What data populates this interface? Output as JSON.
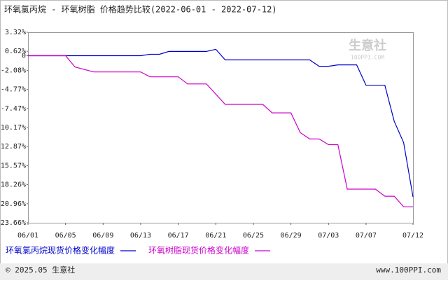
{
  "chart_data": {
    "type": "line",
    "title": "环氧氯丙烷 - 环氧树脂 价格趋势比较(2022-06-01 - 2022-07-12)",
    "watermark": "生意社",
    "watermark_sub": "100PPI.COM",
    "series": [
      {
        "name": "环氧氯丙烷现货价格变化幅度",
        "color": "#0000cc",
        "x": [
          "06/01",
          "06/13",
          "06/14",
          "06/15",
          "06/16",
          "06/20",
          "06/21",
          "06/22",
          "07/01",
          "07/02",
          "07/03",
          "07/04",
          "07/06",
          "07/07",
          "07/09",
          "07/10",
          "07/11",
          "07/12"
        ],
        "values": [
          0,
          0,
          0.2,
          0.2,
          0.6,
          0.6,
          0.9,
          -0.6,
          -0.6,
          -1.5,
          -1.5,
          -1.3,
          -1.3,
          -4.2,
          -4.2,
          -9.3,
          -12.3,
          -20.0
        ]
      },
      {
        "name": "环氧树脂现货价格变化幅度",
        "color": "#cc00cc",
        "x": [
          "06/01",
          "06/05",
          "06/06",
          "06/08",
          "06/13",
          "06/14",
          "06/17",
          "06/18",
          "06/20",
          "06/22",
          "06/26",
          "06/27",
          "06/29",
          "06/30",
          "07/01",
          "07/02",
          "07/03",
          "07/04",
          "07/05",
          "07/08",
          "07/09",
          "07/10",
          "07/11",
          "07/12"
        ],
        "values": [
          0,
          0,
          -1.6,
          -2.3,
          -2.3,
          -3.0,
          -3.0,
          -4.0,
          -4.0,
          -6.9,
          -6.9,
          -8.1,
          -8.1,
          -10.9,
          -11.8,
          -11.8,
          -12.6,
          -12.6,
          -18.9,
          -18.9,
          -19.9,
          -19.9,
          -21.4,
          -21.4
        ]
      }
    ],
    "xlim": [
      "06/01",
      "07/12"
    ],
    "xticks": [
      "06/01",
      "06/05",
      "06/09",
      "06/13",
      "06/17",
      "06/21",
      "06/25",
      "06/29",
      "07/03",
      "07/07",
      "07/12"
    ],
    "ylim": [
      -23.66,
      3.32
    ],
    "yticks": [
      {
        "value": 3.32,
        "label": "3.32%"
      },
      {
        "value": 0.62,
        "label": "0.62%"
      },
      0,
      {
        "value": -2.08,
        "label": "-2.08%"
      },
      {
        "value": -4.77,
        "label": "-4.77%"
      },
      {
        "value": -7.47,
        "label": "-7.47%"
      },
      {
        "value": -10.17,
        "label": "-10.17%"
      },
      {
        "value": -12.87,
        "label": "-12.87%"
      },
      {
        "value": -15.57,
        "label": "-15.57%"
      },
      {
        "value": -18.26,
        "label": "-18.26%"
      },
      {
        "value": -20.96,
        "label": "-20.96%"
      },
      {
        "value": -23.66,
        "label": "-23.66%"
      }
    ],
    "grid": false,
    "footer_left": "© 2025.05 生意社",
    "footer_right": "www.100PPI.com"
  }
}
